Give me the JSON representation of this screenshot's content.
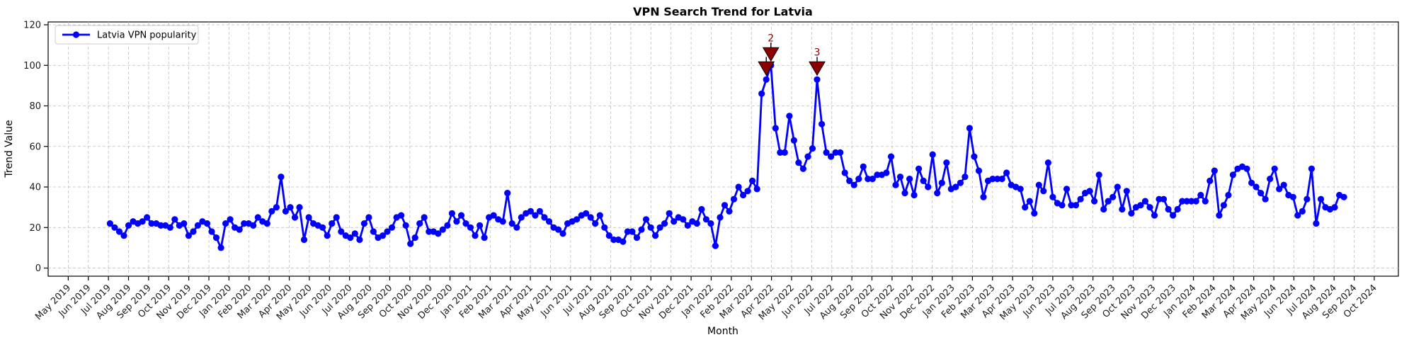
{
  "chart_data": {
    "type": "line",
    "title": "VPN Search Trend for Latvia",
    "xlabel": "Month",
    "ylabel": "Trend Value",
    "grid": true,
    "legend": {
      "position": "upper left",
      "entries": [
        "Latvia VPN popularity"
      ]
    },
    "colors": {
      "line": "#0000FF",
      "marker": "#0000FF",
      "annotation": "#8B0000",
      "grid": "#bfbfbf",
      "axis": "#000000",
      "legend_border": "#cccccc"
    },
    "x_axis": {
      "tick_labels": [
        "May 2019",
        "Jun 2019",
        "Jul 2019",
        "Aug 2019",
        "Sep 2019",
        "Oct 2019",
        "Nov 2019",
        "Dec 2019",
        "Jan 2020",
        "Feb 2020",
        "Mar 2020",
        "Apr 2020",
        "May 2020",
        "Jun 2020",
        "Jul 2020",
        "Aug 2020",
        "Sep 2020",
        "Oct 2020",
        "Nov 2020",
        "Dec 2020",
        "Jan 2021",
        "Feb 2021",
        "Mar 2021",
        "Apr 2021",
        "May 2021",
        "Jun 2021",
        "Jul 2021",
        "Aug 2021",
        "Sep 2021",
        "Oct 2021",
        "Nov 2021",
        "Dec 2021",
        "Jan 2022",
        "Feb 2022",
        "Mar 2022",
        "Apr 2022",
        "May 2022",
        "Jun 2022",
        "Jul 2022",
        "Aug 2022",
        "Sep 2022",
        "Oct 2022",
        "Nov 2022",
        "Dec 2022",
        "Jan 2023",
        "Feb 2023",
        "Mar 2023",
        "Apr 2023",
        "May 2023",
        "Jun 2023",
        "Jul 2023",
        "Aug 2023",
        "Sep 2023",
        "Oct 2023",
        "Nov 2023",
        "Dec 2023",
        "Jan 2024",
        "Feb 2024",
        "Mar 2024",
        "Apr 2024",
        "May 2024",
        "Jun 2024",
        "Jul 2024",
        "Aug 2024",
        "Sep 2024",
        "Oct 2024"
      ],
      "rotation_deg": 45,
      "start_offset_months": 2.08,
      "step_months": 0.23,
      "lim_months": [
        -1.0,
        66.2
      ]
    },
    "y_axis": {
      "ticks": [
        0,
        20,
        40,
        60,
        80,
        100,
        120
      ],
      "lim": [
        -4,
        121.4
      ]
    },
    "series": [
      {
        "name": "Latvia VPN popularity",
        "marker": "circle",
        "frequency": "weekly",
        "values": [
          22,
          20,
          18,
          16,
          21,
          23,
          22,
          23,
          25,
          22,
          22,
          21,
          21,
          20,
          24,
          21,
          22,
          16,
          18,
          21,
          23,
          22,
          18,
          15,
          10,
          22,
          24,
          20,
          19,
          22,
          22,
          21,
          25,
          23,
          22,
          28,
          30,
          45,
          28,
          30,
          25,
          30,
          14,
          25,
          22,
          21,
          20,
          16,
          22,
          25,
          18,
          16,
          15,
          17,
          14,
          22,
          25,
          18,
          15,
          16,
          18,
          20,
          25,
          26,
          21,
          12,
          15,
          22,
          25,
          18,
          18,
          17,
          19,
          21,
          27,
          23,
          26,
          22,
          20,
          16,
          21,
          15,
          25,
          26,
          24,
          23,
          37,
          22,
          20,
          25,
          27,
          28,
          26,
          28,
          25,
          23,
          20,
          19,
          17,
          22,
          23,
          24,
          26,
          27,
          25,
          22,
          26,
          20,
          16,
          14,
          14,
          13,
          18,
          18,
          15,
          19,
          24,
          20,
          16,
          20,
          22,
          27,
          23,
          25,
          24,
          21,
          23,
          22,
          29,
          24,
          22,
          11,
          25,
          31,
          28,
          34,
          40,
          36,
          38,
          43,
          39,
          86,
          93,
          100,
          69,
          57,
          57,
          75,
          63,
          52,
          49,
          55,
          59,
          93,
          71,
          57,
          55,
          57,
          57,
          47,
          43,
          41,
          44,
          50,
          44,
          44,
          46,
          46,
          47,
          55,
          41,
          45,
          37,
          44,
          36,
          49,
          43,
          40,
          56,
          37,
          42,
          52,
          39,
          40,
          42,
          45,
          69,
          55,
          48,
          35,
          43,
          44,
          44,
          44,
          47,
          41,
          40,
          39,
          30,
          33,
          27,
          41,
          38,
          52,
          35,
          32,
          31,
          39,
          31,
          31,
          34,
          37,
          38,
          33,
          46,
          29,
          33,
          35,
          40,
          29,
          38,
          27,
          30,
          31,
          33,
          30,
          26,
          34,
          34,
          29,
          26,
          29,
          33,
          33,
          33,
          33,
          36,
          33,
          43,
          48,
          26,
          31,
          36,
          46,
          49,
          50,
          49,
          42,
          40,
          37,
          34,
          44,
          49,
          39,
          41,
          36,
          35,
          26,
          28,
          34,
          49,
          22,
          34,
          30,
          29,
          30,
          36,
          35
        ]
      }
    ],
    "annotations": [
      {
        "label": "",
        "point_index": 142,
        "color": "#8B0000"
      },
      {
        "label": "2",
        "point_index": 143,
        "color": "#8B0000"
      },
      {
        "label": "3",
        "point_index": 153,
        "color": "#8B0000"
      }
    ]
  }
}
